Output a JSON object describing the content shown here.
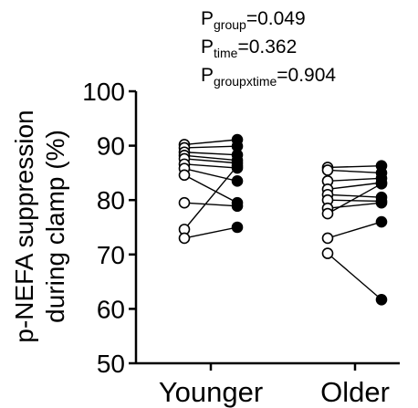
{
  "chart_data": {
    "type": "scatter",
    "subtype": "paired before-after dot plot",
    "ylabel_line1": "p-NEFA suppression",
    "ylabel_line2": "during clamp (%)",
    "ylim": [
      50,
      100
    ],
    "yticks": [
      "50",
      "60",
      "70",
      "80",
      "90",
      "100"
    ],
    "grid": false,
    "legend": "none",
    "stats": [
      {
        "prefix": "P",
        "sub": "group",
        "value": "=0.049"
      },
      {
        "prefix": "P",
        "sub": "time",
        "value": "=0.362"
      },
      {
        "prefix": "P",
        "sub": "groupxtime",
        "value": "=0.904"
      }
    ],
    "groups": [
      {
        "name": "Younger",
        "pairs": [
          [
            90.2,
            91.1
          ],
          [
            89.6,
            89.9
          ],
          [
            88.8,
            88.3
          ],
          [
            88.2,
            87.3
          ],
          [
            87.6,
            86.8
          ],
          [
            86.6,
            85.9
          ],
          [
            85.8,
            83.5
          ],
          [
            84.6,
            79.5
          ],
          [
            79.5,
            78.9
          ],
          [
            74.6,
            86.3
          ],
          [
            73.0,
            75.0
          ]
        ]
      },
      {
        "name": "Older",
        "pairs": [
          [
            86.0,
            86.3
          ],
          [
            85.5,
            85.0
          ],
          [
            83.5,
            84.0
          ],
          [
            82.0,
            83.2
          ],
          [
            81.0,
            80.5
          ],
          [
            80.0,
            79.8
          ],
          [
            78.5,
            79.5
          ],
          [
            77.5,
            83.0
          ],
          [
            73.0,
            76.0
          ],
          [
            70.2,
            61.7
          ]
        ]
      }
    ],
    "colors": {
      "first_marker_fill": "#ffffff",
      "second_marker_fill": "#000000",
      "stroke": "#000000"
    }
  }
}
